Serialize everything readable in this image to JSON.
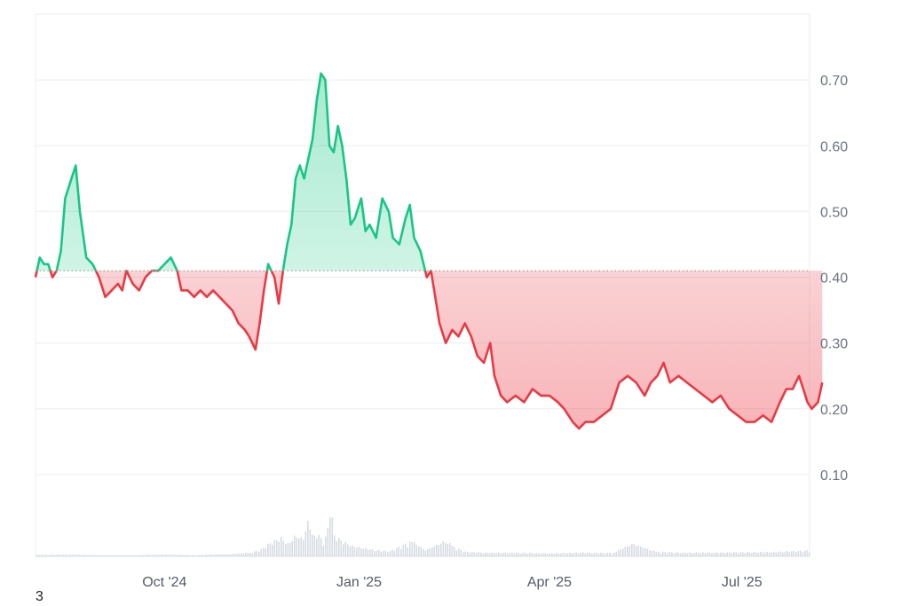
{
  "corner_label": "3",
  "colors": {
    "up_line": "#16c784",
    "down_line": "#ea3943",
    "up_fill": "#16c784",
    "down_fill": "#ea3943",
    "baseline": "#9ca3af",
    "grid": "#eceef1",
    "volume": "#d7dce3"
  },
  "chart_data": {
    "type": "area",
    "baseline_value": 0.41,
    "x_range": [
      "2024-08-01",
      "2025-08-02"
    ],
    "ylim": [
      0,
      0.8
    ],
    "y_ticks": [
      {
        "value": 0.7,
        "label": "0.70"
      },
      {
        "value": 0.6,
        "label": "0.60"
      },
      {
        "value": 0.5,
        "label": "0.50"
      },
      {
        "value": 0.4,
        "label": "0.40"
      },
      {
        "value": 0.3,
        "label": "0.30"
      },
      {
        "value": 0.2,
        "label": "0.20"
      },
      {
        "value": 0.1,
        "label": "0.10"
      }
    ],
    "x_ticks": [
      {
        "date": "2024-10-01",
        "label": "Oct '24"
      },
      {
        "date": "2025-01-01",
        "label": "Jan '25"
      },
      {
        "date": "2025-04-01",
        "label": "Apr '25"
      },
      {
        "date": "2025-07-01",
        "label": "Jul '25"
      }
    ],
    "grid": true,
    "series": [
      {
        "points": [
          [
            "2024-08-01",
            0.4
          ],
          [
            "2024-08-03",
            0.43
          ],
          [
            "2024-08-05",
            0.42
          ],
          [
            "2024-08-07",
            0.42
          ],
          [
            "2024-08-09",
            0.4
          ],
          [
            "2024-08-11",
            0.41
          ],
          [
            "2024-08-13",
            0.44
          ],
          [
            "2024-08-15",
            0.52
          ],
          [
            "2024-08-18",
            0.55
          ],
          [
            "2024-08-20",
            0.57
          ],
          [
            "2024-08-22",
            0.5
          ],
          [
            "2024-08-25",
            0.43
          ],
          [
            "2024-08-28",
            0.42
          ],
          [
            "2024-08-31",
            0.4
          ],
          [
            "2024-09-03",
            0.37
          ],
          [
            "2024-09-06",
            0.38
          ],
          [
            "2024-09-09",
            0.39
          ],
          [
            "2024-09-11",
            0.38
          ],
          [
            "2024-09-13",
            0.41
          ],
          [
            "2024-09-16",
            0.39
          ],
          [
            "2024-09-19",
            0.38
          ],
          [
            "2024-09-22",
            0.4
          ],
          [
            "2024-09-25",
            0.41
          ],
          [
            "2024-09-28",
            0.41
          ],
          [
            "2024-10-01",
            0.42
          ],
          [
            "2024-10-04",
            0.43
          ],
          [
            "2024-10-07",
            0.41
          ],
          [
            "2024-10-09",
            0.38
          ],
          [
            "2024-10-12",
            0.38
          ],
          [
            "2024-10-15",
            0.37
          ],
          [
            "2024-10-18",
            0.38
          ],
          [
            "2024-10-21",
            0.37
          ],
          [
            "2024-10-24",
            0.38
          ],
          [
            "2024-10-27",
            0.37
          ],
          [
            "2024-10-30",
            0.36
          ],
          [
            "2024-11-02",
            0.35
          ],
          [
            "2024-11-05",
            0.33
          ],
          [
            "2024-11-08",
            0.32
          ],
          [
            "2024-11-10",
            0.31
          ],
          [
            "2024-11-13",
            0.29
          ],
          [
            "2024-11-15",
            0.33
          ],
          [
            "2024-11-17",
            0.38
          ],
          [
            "2024-11-19",
            0.42
          ],
          [
            "2024-11-22",
            0.4
          ],
          [
            "2024-11-24",
            0.36
          ],
          [
            "2024-11-26",
            0.41
          ],
          [
            "2024-11-28",
            0.45
          ],
          [
            "2024-11-30",
            0.48
          ],
          [
            "2024-12-02",
            0.55
          ],
          [
            "2024-12-04",
            0.57
          ],
          [
            "2024-12-06",
            0.55
          ],
          [
            "2024-12-08",
            0.58
          ],
          [
            "2024-12-10",
            0.61
          ],
          [
            "2024-12-12",
            0.67
          ],
          [
            "2024-12-14",
            0.71
          ],
          [
            "2024-12-16",
            0.7
          ],
          [
            "2024-12-18",
            0.6
          ],
          [
            "2024-12-20",
            0.59
          ],
          [
            "2024-12-22",
            0.63
          ],
          [
            "2024-12-24",
            0.6
          ],
          [
            "2024-12-26",
            0.55
          ],
          [
            "2024-12-28",
            0.48
          ],
          [
            "2024-12-30",
            0.49
          ],
          [
            "2025-01-02",
            0.52
          ],
          [
            "2025-01-04",
            0.47
          ],
          [
            "2025-01-06",
            0.48
          ],
          [
            "2025-01-09",
            0.46
          ],
          [
            "2025-01-12",
            0.52
          ],
          [
            "2025-01-15",
            0.5
          ],
          [
            "2025-01-17",
            0.46
          ],
          [
            "2025-01-20",
            0.45
          ],
          [
            "2025-01-23",
            0.49
          ],
          [
            "2025-01-25",
            0.51
          ],
          [
            "2025-01-27",
            0.46
          ],
          [
            "2025-01-30",
            0.44
          ],
          [
            "2025-02-02",
            0.4
          ],
          [
            "2025-02-04",
            0.41
          ],
          [
            "2025-02-06",
            0.37
          ],
          [
            "2025-02-08",
            0.33
          ],
          [
            "2025-02-11",
            0.3
          ],
          [
            "2025-02-14",
            0.32
          ],
          [
            "2025-02-17",
            0.31
          ],
          [
            "2025-02-20",
            0.33
          ],
          [
            "2025-02-23",
            0.31
          ],
          [
            "2025-02-26",
            0.28
          ],
          [
            "2025-03-01",
            0.27
          ],
          [
            "2025-03-04",
            0.3
          ],
          [
            "2025-03-06",
            0.25
          ],
          [
            "2025-03-09",
            0.22
          ],
          [
            "2025-03-12",
            0.21
          ],
          [
            "2025-03-16",
            0.22
          ],
          [
            "2025-03-20",
            0.21
          ],
          [
            "2025-03-24",
            0.23
          ],
          [
            "2025-03-28",
            0.22
          ],
          [
            "2025-04-01",
            0.22
          ],
          [
            "2025-04-05",
            0.21
          ],
          [
            "2025-04-08",
            0.2
          ],
          [
            "2025-04-12",
            0.18
          ],
          [
            "2025-04-15",
            0.17
          ],
          [
            "2025-04-18",
            0.18
          ],
          [
            "2025-04-22",
            0.18
          ],
          [
            "2025-04-26",
            0.19
          ],
          [
            "2025-04-30",
            0.2
          ],
          [
            "2025-05-04",
            0.24
          ],
          [
            "2025-05-08",
            0.25
          ],
          [
            "2025-05-12",
            0.24
          ],
          [
            "2025-05-16",
            0.22
          ],
          [
            "2025-05-19",
            0.24
          ],
          [
            "2025-05-22",
            0.25
          ],
          [
            "2025-05-25",
            0.27
          ],
          [
            "2025-05-28",
            0.24
          ],
          [
            "2025-06-01",
            0.25
          ],
          [
            "2025-06-05",
            0.24
          ],
          [
            "2025-06-09",
            0.23
          ],
          [
            "2025-06-13",
            0.22
          ],
          [
            "2025-06-17",
            0.21
          ],
          [
            "2025-06-21",
            0.22
          ],
          [
            "2025-06-25",
            0.2
          ],
          [
            "2025-06-29",
            0.19
          ],
          [
            "2025-07-03",
            0.18
          ],
          [
            "2025-07-07",
            0.18
          ],
          [
            "2025-07-11",
            0.19
          ],
          [
            "2025-07-15",
            0.18
          ],
          [
            "2025-07-19",
            0.21
          ],
          [
            "2025-07-22",
            0.23
          ],
          [
            "2025-07-25",
            0.23
          ],
          [
            "2025-07-28",
            0.25
          ],
          [
            "2025-07-30",
            0.23
          ],
          [
            "2025-08-01",
            0.21
          ],
          [
            "2025-08-03",
            0.2
          ],
          [
            "2025-08-06",
            0.21
          ],
          [
            "2025-08-08",
            0.24
          ]
        ]
      }
    ],
    "volume_ylim": [
      0,
      1
    ],
    "volume": [
      [
        "2024-08-01",
        0.02
      ],
      [
        "2024-08-15",
        0.03
      ],
      [
        "2024-09-01",
        0.02
      ],
      [
        "2024-09-15",
        0.02
      ],
      [
        "2024-10-01",
        0.03
      ],
      [
        "2024-10-15",
        0.02
      ],
      [
        "2024-11-01",
        0.03
      ],
      [
        "2024-11-10",
        0.05
      ],
      [
        "2024-11-15",
        0.1
      ],
      [
        "2024-11-20",
        0.22
      ],
      [
        "2024-11-25",
        0.3
      ],
      [
        "2024-11-28",
        0.2
      ],
      [
        "2024-12-02",
        0.35
      ],
      [
        "2024-12-05",
        0.28
      ],
      [
        "2024-12-08",
        0.62
      ],
      [
        "2024-12-10",
        0.3
      ],
      [
        "2024-12-12",
        0.4
      ],
      [
        "2024-12-15",
        0.22
      ],
      [
        "2024-12-17",
        0.48
      ],
      [
        "2024-12-18",
        0.9
      ],
      [
        "2024-12-20",
        0.35
      ],
      [
        "2024-12-24",
        0.25
      ],
      [
        "2024-12-28",
        0.18
      ],
      [
        "2025-01-02",
        0.14
      ],
      [
        "2025-01-08",
        0.1
      ],
      [
        "2025-01-15",
        0.08
      ],
      [
        "2025-01-25",
        0.22
      ],
      [
        "2025-02-01",
        0.08
      ],
      [
        "2025-02-10",
        0.2
      ],
      [
        "2025-02-20",
        0.07
      ],
      [
        "2025-03-01",
        0.06
      ],
      [
        "2025-03-15",
        0.06
      ],
      [
        "2025-04-01",
        0.05
      ],
      [
        "2025-04-15",
        0.06
      ],
      [
        "2025-05-01",
        0.05
      ],
      [
        "2025-05-10",
        0.17
      ],
      [
        "2025-05-20",
        0.07
      ],
      [
        "2025-06-01",
        0.06
      ],
      [
        "2025-06-15",
        0.06
      ],
      [
        "2025-07-01",
        0.07
      ],
      [
        "2025-07-15",
        0.07
      ],
      [
        "2025-08-01",
        0.09
      ],
      [
        "2025-08-08",
        0.12
      ]
    ]
  }
}
